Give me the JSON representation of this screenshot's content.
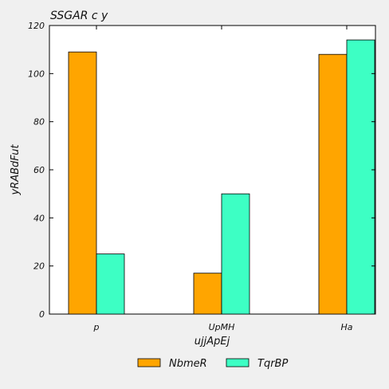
{
  "chart_data": {
    "type": "bar",
    "title": "SSGAR c y",
    "xlabel": "ujjApEj",
    "ylabel": "yRABdFut",
    "categories": [
      "p",
      "UpMH",
      "Ha"
    ],
    "series": [
      {
        "name": "NbmeR",
        "values": [
          109,
          17,
          108
        ],
        "color": "#ffa500"
      },
      {
        "name": "TqrBP",
        "values": [
          25,
          50,
          114
        ],
        "color": "#3dffc4"
      }
    ],
    "ylim": [
      0,
      120
    ],
    "yticks": [
      0,
      20,
      40,
      60,
      80,
      100,
      120
    ],
    "grid": false,
    "legend_position": "bottom-center"
  }
}
